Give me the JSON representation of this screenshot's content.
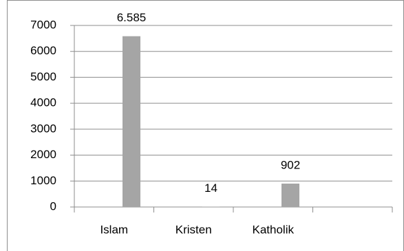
{
  "chart_data": {
    "type": "bar",
    "categories": [
      "Islam",
      "Kristen",
      "Katholik",
      null
    ],
    "values": [
      6585,
      14,
      902,
      null
    ],
    "value_labels": [
      "6.585",
      "14",
      "902",
      null
    ],
    "color": "#a5a5a5",
    "ylim": [
      0,
      7000
    ],
    "yticks": [
      0,
      1000,
      2000,
      3000,
      4000,
      5000,
      6000,
      7000
    ],
    "grid": true
  }
}
